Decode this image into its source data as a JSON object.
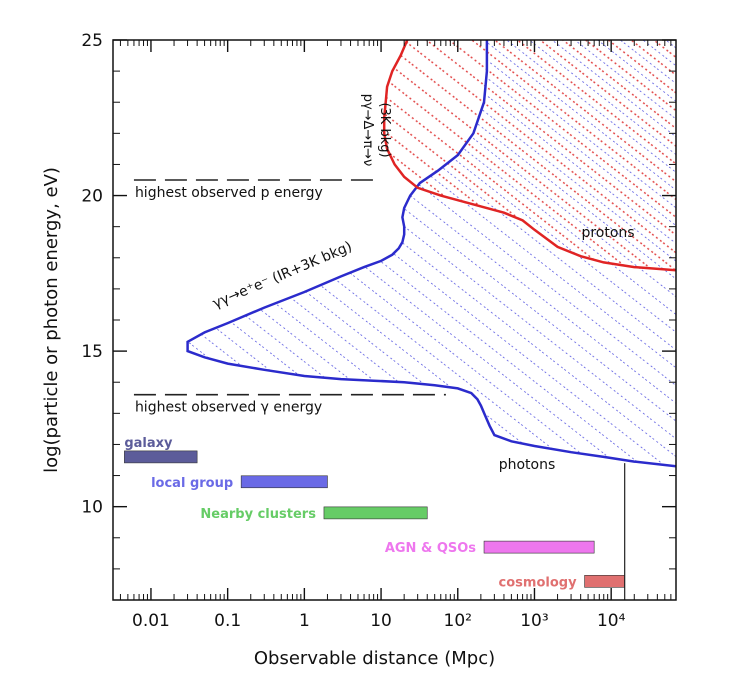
{
  "chart_data": {
    "type": "line",
    "xlabel": "Observable distance (Mpc)",
    "ylabel": "log(particle or photon energy, eV)",
    "xscale": "log",
    "xlim": [
      0.0032,
      70000
    ],
    "ylim": [
      7,
      25
    ],
    "grid": false,
    "x_tick_labels": [
      "0.01",
      "0.1",
      "1",
      "10",
      "10²",
      "10³",
      "10⁴"
    ],
    "x_tick_values": [
      0.01,
      0.1,
      1,
      10,
      100,
      1000,
      10000
    ],
    "y_tick_labels": [
      "10",
      "15",
      "20",
      "25"
    ],
    "y_tick_values": [
      10,
      15,
      20,
      25
    ],
    "colors": {
      "photons": "#2b2bcc",
      "protons": "#e02424",
      "galaxy": "#5c5c9a",
      "local_group": "#6a6ae6",
      "nearby_clusters": "#66cc66",
      "agn": "#ee77ee",
      "cosmology": "#e07070"
    },
    "series": [
      {
        "name": "photons",
        "color": "#2b2bcc",
        "x": [
          70000,
          20000,
          8000,
          3000,
          1000,
          500,
          300,
          260,
          230,
          200,
          180,
          150,
          100,
          50,
          20,
          8,
          3,
          1,
          0.3,
          0.1,
          0.05,
          0.03,
          0.03,
          0.05,
          0.1,
          0.3,
          1,
          3,
          6,
          10,
          14,
          17,
          19,
          20,
          20,
          19,
          20,
          24,
          32,
          55,
          100,
          160,
          220,
          240,
          240
        ],
        "y": [
          11.3,
          11.45,
          11.6,
          11.75,
          11.95,
          12.1,
          12.3,
          12.6,
          12.9,
          13.25,
          13.45,
          13.65,
          13.8,
          13.9,
          14.0,
          14.05,
          14.1,
          14.2,
          14.4,
          14.6,
          14.8,
          15.0,
          15.3,
          15.6,
          15.9,
          16.4,
          16.9,
          17.4,
          17.7,
          17.9,
          18.1,
          18.3,
          18.5,
          18.75,
          19.0,
          19.3,
          19.6,
          20.0,
          20.4,
          20.8,
          21.3,
          22.0,
          23.0,
          24.0,
          25.0
        ]
      },
      {
        "name": "protons",
        "color": "#e02424",
        "x": [
          70000,
          20000,
          8000,
          4000,
          2000,
          1000,
          700,
          400,
          200,
          120,
          60,
          30,
          20,
          15,
          12,
          11,
          11,
          11.5,
          12,
          14,
          18,
          22
        ],
        "y": [
          17.6,
          17.7,
          17.85,
          18.05,
          18.35,
          18.9,
          19.2,
          19.45,
          19.65,
          19.8,
          20.0,
          20.25,
          20.6,
          21.0,
          21.5,
          22.0,
          22.5,
          23.0,
          23.5,
          24.0,
          24.5,
          25.0
        ]
      }
    ],
    "reference_lines": [
      {
        "label": "highest observed p energy",
        "y": 20.5,
        "x_range": [
          0.006,
          10
        ]
      },
      {
        "label": "highest observed γ energy",
        "y": 13.6,
        "x_range": [
          0.006,
          70
        ]
      }
    ],
    "annotations": {
      "proton_process": "pγ→Δ→π→ν",
      "proton_process_bkg": "(3K bkg)",
      "photon_process": "γγ→e⁺e⁻ (IR+3K bkg)",
      "protons_label": "protons",
      "photons_label": "photons"
    },
    "ranges": [
      {
        "label": "galaxy",
        "x_range": [
          0.0045,
          0.04
        ],
        "y": 11.6,
        "color": "#5c5c9a"
      },
      {
        "label": "local group",
        "x_range": [
          0.15,
          2
        ],
        "y": 10.8,
        "color": "#6a6ae6"
      },
      {
        "label": "Nearby clusters",
        "x_range": [
          1.8,
          40
        ],
        "y": 9.8,
        "color": "#66cc66"
      },
      {
        "label": "AGN & QSOs",
        "x_range": [
          220,
          6000
        ],
        "y": 8.7,
        "color": "#ee77ee"
      },
      {
        "label": "cosmology",
        "x_range": [
          4500,
          15000
        ],
        "y": 7.6,
        "color": "#e07070"
      }
    ],
    "horizon_line_x": 15000
  }
}
